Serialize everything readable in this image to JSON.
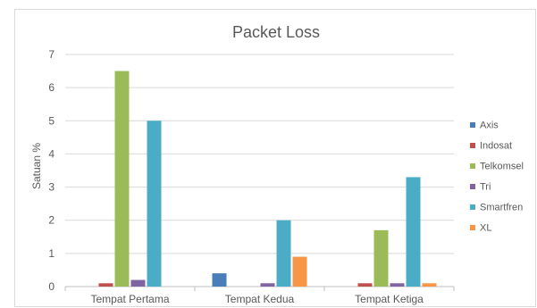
{
  "chart_data": {
    "type": "bar",
    "title": "Packet Loss",
    "xlabel": "",
    "ylabel": "Satuan %",
    "categories": [
      "Tempat Pertama",
      "Tempat Kedua",
      "Tempat Ketiga"
    ],
    "ylim": [
      0,
      7
    ],
    "yticks": [
      0,
      1,
      2,
      3,
      4,
      5,
      6,
      7
    ],
    "grid": true,
    "legend_position": "right",
    "series": [
      {
        "name": "Axis",
        "color": "#4a7ebb",
        "values": [
          0.0,
          0.4,
          0.0
        ]
      },
      {
        "name": "Indosat",
        "color": "#c0504d",
        "values": [
          0.1,
          0.0,
          0.1
        ]
      },
      {
        "name": "Telkomsel",
        "color": "#9bbb59",
        "values": [
          6.5,
          0.0,
          1.7
        ]
      },
      {
        "name": "Tri",
        "color": "#8064a2",
        "values": [
          0.2,
          0.1,
          0.1
        ]
      },
      {
        "name": "Smartfren",
        "color": "#4bacc6",
        "values": [
          5.0,
          2.0,
          3.3
        ]
      },
      {
        "name": "XL",
        "color": "#f79646",
        "values": [
          0.0,
          0.9,
          0.1
        ]
      }
    ]
  }
}
